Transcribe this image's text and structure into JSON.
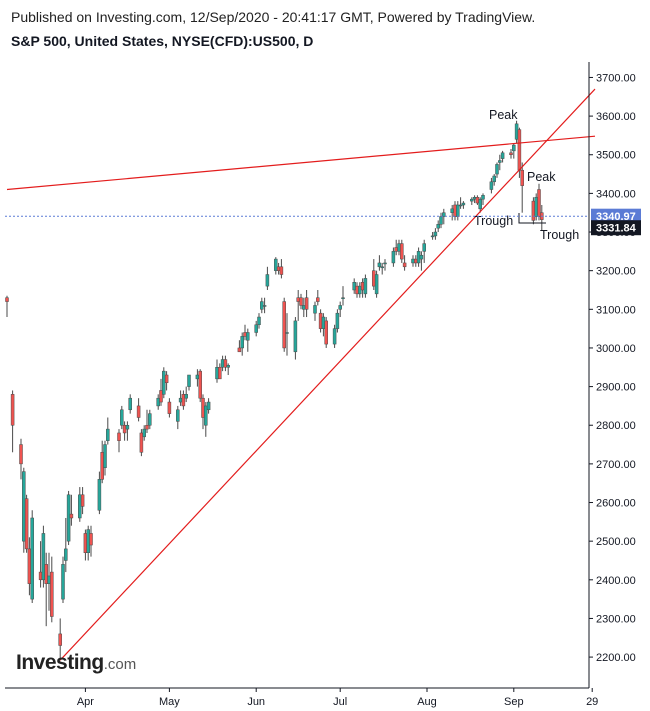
{
  "header": {
    "published": "Published on Investing.com, 12/Sep/2020 - 20:41:17 GMT, Powered by TradingView.",
    "symbol": "S&P 500, United States, NYSE(CFD):US500, D"
  },
  "logo": {
    "main": "Investing",
    "suffix": ".com"
  },
  "colors": {
    "up": "#26a69a",
    "down": "#ef5350",
    "trend": "#e31c1c",
    "last_badge": "#5b7bd5",
    "close_badge": "#131722",
    "axis": "#131722"
  },
  "chart_data": {
    "type": "candlestick",
    "title": "S&P 500, United States, NYSE(CFD):US500, D",
    "ylim": [
      2120,
      3740
    ],
    "y_ticks": [
      "3700.00",
      "3600.00",
      "3500.00",
      "3400.00",
      "3300.00",
      "3200.00",
      "3100.00",
      "3000.00",
      "2900.00",
      "2800.00",
      "2700.00",
      "2600.00",
      "2500.00",
      "2400.00",
      "2300.00",
      "2200.00"
    ],
    "x_labels": [
      "Apr",
      "May",
      "Jun",
      "Jul",
      "Aug",
      "Sep",
      "29"
    ],
    "last_price": "3340.97",
    "close_price": "3331.84",
    "annotations": [
      "Peak",
      "Peak",
      "Trough",
      "Trough"
    ],
    "trend_lines": [
      {
        "from": {
          "date": "2020-03-04",
          "price": 3410
        },
        "to": {
          "date": "2020-09-30",
          "price": 3548
        }
      },
      {
        "from": {
          "date": "2020-03-23",
          "price": 2192
        },
        "to": {
          "date": "2020-09-30",
          "price": 3670
        }
      }
    ],
    "candles": [
      {
        "date": "2020-03-04",
        "o": 3130,
        "h": 3135,
        "l": 3080,
        "c": 3120
      },
      {
        "date": "2020-03-06",
        "o": 2880,
        "h": 2890,
        "l": 2730,
        "c": 2800
      },
      {
        "date": "2020-03-09",
        "o": 2750,
        "h": 2765,
        "l": 2660,
        "c": 2700
      },
      {
        "date": "2020-03-10",
        "o": 2500,
        "h": 2690,
        "l": 2470,
        "c": 2680
      },
      {
        "date": "2020-03-11",
        "o": 2610,
        "h": 2620,
        "l": 2470,
        "c": 2480
      },
      {
        "date": "2020-03-12",
        "o": 2480,
        "h": 2510,
        "l": 2360,
        "c": 2390
      },
      {
        "date": "2020-03-13",
        "o": 2350,
        "h": 2580,
        "l": 2340,
        "c": 2560
      },
      {
        "date": "2020-03-16",
        "o": 2420,
        "h": 2500,
        "l": 2380,
        "c": 2400
      },
      {
        "date": "2020-03-17",
        "o": 2400,
        "h": 2540,
        "l": 2380,
        "c": 2520
      },
      {
        "date": "2020-03-18",
        "o": 2440,
        "h": 2470,
        "l": 2280,
        "c": 2390
      },
      {
        "date": "2020-03-19",
        "o": 2390,
        "h": 2470,
        "l": 2320,
        "c": 2410
      },
      {
        "date": "2020-03-20",
        "o": 2420,
        "h": 2460,
        "l": 2290,
        "c": 2305
      },
      {
        "date": "2020-03-23",
        "o": 2260,
        "h": 2300,
        "l": 2192,
        "c": 2230
      },
      {
        "date": "2020-03-24",
        "o": 2350,
        "h": 2460,
        "l": 2340,
        "c": 2440
      },
      {
        "date": "2020-03-25",
        "o": 2450,
        "h": 2560,
        "l": 2420,
        "c": 2480
      },
      {
        "date": "2020-03-26",
        "o": 2500,
        "h": 2630,
        "l": 2490,
        "c": 2620
      },
      {
        "date": "2020-03-27",
        "o": 2570,
        "h": 2620,
        "l": 2540,
        "c": 2560
      },
      {
        "date": "2020-03-30",
        "o": 2560,
        "h": 2640,
        "l": 2550,
        "c": 2620
      },
      {
        "date": "2020-03-31",
        "o": 2620,
        "h": 2640,
        "l": 2570,
        "c": 2590
      },
      {
        "date": "2020-04-01",
        "o": 2520,
        "h": 2530,
        "l": 2450,
        "c": 2470
      },
      {
        "date": "2020-04-02",
        "o": 2470,
        "h": 2540,
        "l": 2450,
        "c": 2530
      },
      {
        "date": "2020-04-03",
        "o": 2520,
        "h": 2540,
        "l": 2460,
        "c": 2490
      },
      {
        "date": "2020-04-06",
        "o": 2580,
        "h": 2680,
        "l": 2570,
        "c": 2660
      },
      {
        "date": "2020-04-07",
        "o": 2730,
        "h": 2760,
        "l": 2650,
        "c": 2660
      },
      {
        "date": "2020-04-08",
        "o": 2690,
        "h": 2760,
        "l": 2670,
        "c": 2750
      },
      {
        "date": "2020-04-09",
        "o": 2760,
        "h": 2820,
        "l": 2750,
        "c": 2790
      },
      {
        "date": "2020-04-13",
        "o": 2780,
        "h": 2790,
        "l": 2730,
        "c": 2760
      },
      {
        "date": "2020-04-14",
        "o": 2800,
        "h": 2850,
        "l": 2790,
        "c": 2840
      },
      {
        "date": "2020-04-15",
        "o": 2800,
        "h": 2810,
        "l": 2760,
        "c": 2780
      },
      {
        "date": "2020-04-16",
        "o": 2790,
        "h": 2810,
        "l": 2760,
        "c": 2800
      },
      {
        "date": "2020-04-17",
        "o": 2840,
        "h": 2880,
        "l": 2830,
        "c": 2870
      },
      {
        "date": "2020-04-20",
        "o": 2850,
        "h": 2870,
        "l": 2810,
        "c": 2820
      },
      {
        "date": "2020-04-21",
        "o": 2780,
        "h": 2790,
        "l": 2720,
        "c": 2730
      },
      {
        "date": "2020-04-22",
        "o": 2770,
        "h": 2800,
        "l": 2760,
        "c": 2790
      },
      {
        "date": "2020-04-23",
        "o": 2800,
        "h": 2840,
        "l": 2780,
        "c": 2790
      },
      {
        "date": "2020-04-24",
        "o": 2800,
        "h": 2840,
        "l": 2790,
        "c": 2830
      },
      {
        "date": "2020-04-27",
        "o": 2850,
        "h": 2880,
        "l": 2840,
        "c": 2870
      },
      {
        "date": "2020-04-28",
        "o": 2890,
        "h": 2920,
        "l": 2850,
        "c": 2860
      },
      {
        "date": "2020-04-29",
        "o": 2880,
        "h": 2950,
        "l": 2870,
        "c": 2940
      },
      {
        "date": "2020-04-30",
        "o": 2930,
        "h": 2940,
        "l": 2890,
        "c": 2910
      },
      {
        "date": "2020-05-01",
        "o": 2860,
        "h": 2870,
        "l": 2820,
        "c": 2830
      },
      {
        "date": "2020-05-04",
        "o": 2810,
        "h": 2850,
        "l": 2790,
        "c": 2840
      },
      {
        "date": "2020-05-05",
        "o": 2860,
        "h": 2890,
        "l": 2850,
        "c": 2870
      },
      {
        "date": "2020-05-06",
        "o": 2880,
        "h": 2890,
        "l": 2840,
        "c": 2850
      },
      {
        "date": "2020-05-07",
        "o": 2870,
        "h": 2900,
        "l": 2860,
        "c": 2880
      },
      {
        "date": "2020-05-08",
        "o": 2900,
        "h": 2930,
        "l": 2890,
        "c": 2930
      },
      {
        "date": "2020-05-11",
        "o": 2920,
        "h": 2945,
        "l": 2900,
        "c": 2930
      },
      {
        "date": "2020-05-12",
        "o": 2940,
        "h": 2945,
        "l": 2860,
        "c": 2870
      },
      {
        "date": "2020-05-13",
        "o": 2870,
        "h": 2880,
        "l": 2790,
        "c": 2820
      },
      {
        "date": "2020-05-14",
        "o": 2800,
        "h": 2860,
        "l": 2770,
        "c": 2850
      },
      {
        "date": "2020-05-15",
        "o": 2840,
        "h": 2870,
        "l": 2830,
        "c": 2860
      },
      {
        "date": "2020-05-18",
        "o": 2920,
        "h": 2970,
        "l": 2910,
        "c": 2950
      },
      {
        "date": "2020-05-19",
        "o": 2950,
        "h": 2960,
        "l": 2920,
        "c": 2920
      },
      {
        "date": "2020-05-20",
        "o": 2950,
        "h": 2980,
        "l": 2940,
        "c": 2970
      },
      {
        "date": "2020-05-21",
        "o": 2970,
        "h": 2980,
        "l": 2940,
        "c": 2950
      },
      {
        "date": "2020-05-22",
        "o": 2950,
        "h": 2960,
        "l": 2930,
        "c": 2955
      },
      {
        "date": "2020-05-26",
        "o": 3000,
        "h": 3020,
        "l": 2990,
        "c": 2990
      },
      {
        "date": "2020-05-27",
        "o": 3000,
        "h": 3040,
        "l": 2980,
        "c": 3030
      },
      {
        "date": "2020-05-28",
        "o": 3040,
        "h": 3060,
        "l": 3020,
        "c": 3030
      },
      {
        "date": "2020-05-29",
        "o": 3020,
        "h": 3050,
        "l": 2990,
        "c": 3040
      },
      {
        "date": "2020-06-01",
        "o": 3040,
        "h": 3070,
        "l": 3030,
        "c": 3060
      },
      {
        "date": "2020-06-02",
        "o": 3060,
        "h": 3090,
        "l": 3050,
        "c": 3080
      },
      {
        "date": "2020-06-03",
        "o": 3100,
        "h": 3130,
        "l": 3090,
        "c": 3120
      },
      {
        "date": "2020-06-04",
        "o": 3110,
        "h": 3130,
        "l": 3090,
        "c": 3110
      },
      {
        "date": "2020-06-05",
        "o": 3160,
        "h": 3210,
        "l": 3150,
        "c": 3190
      },
      {
        "date": "2020-06-08",
        "o": 3200,
        "h": 3235,
        "l": 3190,
        "c": 3230
      },
      {
        "date": "2020-06-09",
        "o": 3210,
        "h": 3220,
        "l": 3190,
        "c": 3200
      },
      {
        "date": "2020-06-10",
        "o": 3210,
        "h": 3230,
        "l": 3180,
        "c": 3190
      },
      {
        "date": "2020-06-11",
        "o": 3120,
        "h": 3130,
        "l": 2990,
        "c": 3000
      },
      {
        "date": "2020-06-12",
        "o": 3040,
        "h": 3090,
        "l": 2980,
        "c": 3040
      },
      {
        "date": "2020-06-15",
        "o": 2990,
        "h": 3080,
        "l": 2970,
        "c": 3070
      },
      {
        "date": "2020-06-16",
        "o": 3130,
        "h": 3150,
        "l": 3070,
        "c": 3120
      },
      {
        "date": "2020-06-17",
        "o": 3130,
        "h": 3140,
        "l": 3100,
        "c": 3110
      },
      {
        "date": "2020-06-18",
        "o": 3100,
        "h": 3130,
        "l": 3080,
        "c": 3110
      },
      {
        "date": "2020-06-19",
        "o": 3130,
        "h": 3150,
        "l": 3080,
        "c": 3100
      },
      {
        "date": "2020-06-22",
        "o": 3090,
        "h": 3120,
        "l": 3070,
        "c": 3110
      },
      {
        "date": "2020-06-23",
        "o": 3130,
        "h": 3150,
        "l": 3110,
        "c": 3120
      },
      {
        "date": "2020-06-24",
        "o": 3090,
        "h": 3100,
        "l": 3040,
        "c": 3050
      },
      {
        "date": "2020-06-25",
        "o": 3050,
        "h": 3090,
        "l": 3030,
        "c": 3080
      },
      {
        "date": "2020-06-26",
        "o": 3070,
        "h": 3080,
        "l": 3000,
        "c": 3010
      },
      {
        "date": "2020-06-29",
        "o": 3010,
        "h": 3060,
        "l": 3000,
        "c": 3050
      },
      {
        "date": "2020-06-30",
        "o": 3050,
        "h": 3100,
        "l": 3040,
        "c": 3090
      },
      {
        "date": "2020-07-01",
        "o": 3100,
        "h": 3120,
        "l": 3080,
        "c": 3110
      },
      {
        "date": "2020-07-02",
        "o": 3130,
        "h": 3160,
        "l": 3110,
        "c": 3130
      },
      {
        "date": "2020-07-06",
        "o": 3150,
        "h": 3180,
        "l": 3140,
        "c": 3170
      },
      {
        "date": "2020-07-07",
        "o": 3160,
        "h": 3170,
        "l": 3130,
        "c": 3140
      },
      {
        "date": "2020-07-08",
        "o": 3140,
        "h": 3170,
        "l": 3130,
        "c": 3160
      },
      {
        "date": "2020-07-09",
        "o": 3170,
        "h": 3180,
        "l": 3130,
        "c": 3150
      },
      {
        "date": "2020-07-10",
        "o": 3140,
        "h": 3190,
        "l": 3130,
        "c": 3180
      },
      {
        "date": "2020-07-13",
        "o": 3200,
        "h": 3230,
        "l": 3150,
        "c": 3160
      },
      {
        "date": "2020-07-14",
        "o": 3140,
        "h": 3200,
        "l": 3130,
        "c": 3190
      },
      {
        "date": "2020-07-15",
        "o": 3210,
        "h": 3240,
        "l": 3200,
        "c": 3220
      },
      {
        "date": "2020-07-16",
        "o": 3210,
        "h": 3220,
        "l": 3190,
        "c": 3210
      },
      {
        "date": "2020-07-17",
        "o": 3220,
        "h": 3230,
        "l": 3200,
        "c": 3220
      },
      {
        "date": "2020-07-20",
        "o": 3220,
        "h": 3260,
        "l": 3210,
        "c": 3250
      },
      {
        "date": "2020-07-21",
        "o": 3260,
        "h": 3280,
        "l": 3240,
        "c": 3250
      },
      {
        "date": "2020-07-22",
        "o": 3250,
        "h": 3280,
        "l": 3240,
        "c": 3270
      },
      {
        "date": "2020-07-23",
        "o": 3270,
        "h": 3280,
        "l": 3220,
        "c": 3230
      },
      {
        "date": "2020-07-24",
        "o": 3220,
        "h": 3240,
        "l": 3200,
        "c": 3210
      },
      {
        "date": "2020-07-27",
        "o": 3220,
        "h": 3240,
        "l": 3210,
        "c": 3230
      },
      {
        "date": "2020-07-28",
        "o": 3230,
        "h": 3240,
        "l": 3210,
        "c": 3220
      },
      {
        "date": "2020-07-29",
        "o": 3220,
        "h": 3260,
        "l": 3210,
        "c": 3250
      },
      {
        "date": "2020-07-30",
        "o": 3230,
        "h": 3250,
        "l": 3200,
        "c": 3240
      },
      {
        "date": "2020-07-31",
        "o": 3250,
        "h": 3280,
        "l": 3220,
        "c": 3270
      },
      {
        "date": "2020-08-03",
        "o": 3290,
        "h": 3300,
        "l": 3280,
        "c": 3290
      },
      {
        "date": "2020-08-04",
        "o": 3290,
        "h": 3310,
        "l": 3280,
        "c": 3300
      },
      {
        "date": "2020-08-05",
        "o": 3310,
        "h": 3330,
        "l": 3300,
        "c": 3320
      },
      {
        "date": "2020-08-06",
        "o": 3320,
        "h": 3350,
        "l": 3310,
        "c": 3340
      },
      {
        "date": "2020-08-07",
        "o": 3340,
        "h": 3360,
        "l": 3320,
        "c": 3350
      },
      {
        "date": "2020-08-10",
        "o": 3350,
        "h": 3370,
        "l": 3330,
        "c": 3360
      },
      {
        "date": "2020-08-11",
        "o": 3370,
        "h": 3380,
        "l": 3330,
        "c": 3340
      },
      {
        "date": "2020-08-12",
        "o": 3340,
        "h": 3380,
        "l": 3330,
        "c": 3370
      },
      {
        "date": "2020-08-13",
        "o": 3370,
        "h": 3390,
        "l": 3360,
        "c": 3370
      },
      {
        "date": "2020-08-14",
        "o": 3370,
        "h": 3380,
        "l": 3360,
        "c": 3375
      },
      {
        "date": "2020-08-17",
        "o": 3380,
        "h": 3390,
        "l": 3370,
        "c": 3385
      },
      {
        "date": "2020-08-18",
        "o": 3385,
        "h": 3395,
        "l": 3375,
        "c": 3390
      },
      {
        "date": "2020-08-19",
        "o": 3390,
        "h": 3395,
        "l": 3370,
        "c": 3375
      },
      {
        "date": "2020-08-20",
        "o": 3360,
        "h": 3390,
        "l": 3350,
        "c": 3385
      },
      {
        "date": "2020-08-21",
        "o": 3385,
        "h": 3400,
        "l": 3370,
        "c": 3395
      },
      {
        "date": "2020-08-24",
        "o": 3410,
        "h": 3440,
        "l": 3400,
        "c": 3430
      },
      {
        "date": "2020-08-25",
        "o": 3430,
        "h": 3450,
        "l": 3420,
        "c": 3445
      },
      {
        "date": "2020-08-26",
        "o": 3450,
        "h": 3480,
        "l": 3440,
        "c": 3475
      },
      {
        "date": "2020-08-27",
        "o": 3480,
        "h": 3500,
        "l": 3460,
        "c": 3485
      },
      {
        "date": "2020-08-28",
        "o": 3490,
        "h": 3510,
        "l": 3480,
        "c": 3505
      },
      {
        "date": "2020-08-31",
        "o": 3505,
        "h": 3515,
        "l": 3490,
        "c": 3500
      },
      {
        "date": "2020-09-01",
        "o": 3510,
        "h": 3530,
        "l": 3490,
        "c": 3525
      },
      {
        "date": "2020-09-02",
        "o": 3540,
        "h": 3588,
        "l": 3530,
        "c": 3580
      },
      {
        "date": "2020-09-03",
        "o": 3565,
        "h": 3570,
        "l": 3440,
        "c": 3460
      },
      {
        "date": "2020-09-04",
        "o": 3460,
        "h": 3480,
        "l": 3350,
        "c": 3420
      },
      {
        "date": "2020-09-08",
        "o": 3380,
        "h": 3390,
        "l": 3320,
        "c": 3330
      },
      {
        "date": "2020-09-09",
        "o": 3340,
        "h": 3400,
        "l": 3330,
        "c": 3390
      },
      {
        "date": "2020-09-10",
        "o": 3410,
        "h": 3425,
        "l": 3330,
        "c": 3340
      },
      {
        "date": "2020-09-11",
        "o": 3350,
        "h": 3370,
        "l": 3305,
        "c": 3332
      }
    ]
  }
}
